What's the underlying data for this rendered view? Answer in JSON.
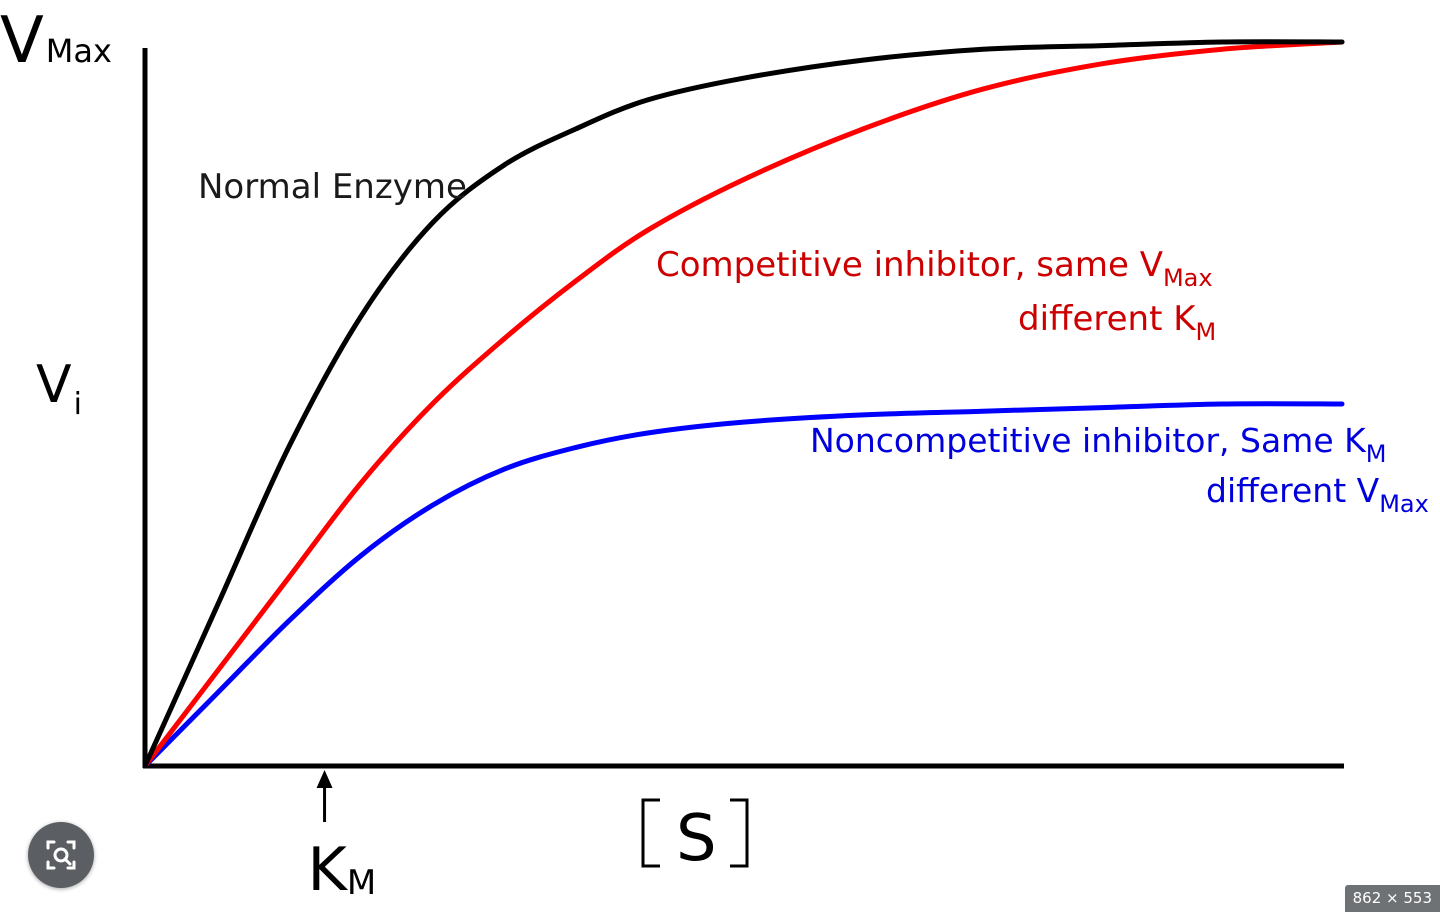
{
  "chart_data": {
    "type": "line",
    "x_label_main": "S",
    "y_top_label_main": "V",
    "y_top_label_sub": "Max",
    "y_mid_label_main": "V",
    "y_mid_label_sub": "i",
    "km_marker_main": "K",
    "km_marker_sub": "M",
    "km_marker_x": 0.15,
    "xlim": [
      0,
      1
    ],
    "ylim": [
      0,
      1
    ],
    "series": [
      {
        "key": "normal",
        "color": "#000000",
        "x": [
          0,
          0.06,
          0.12,
          0.18,
          0.24,
          0.3,
          0.36,
          0.42,
          0.5,
          0.6,
          0.7,
          0.8,
          0.9,
          1.0
        ],
        "y": [
          0,
          0.22,
          0.44,
          0.62,
          0.75,
          0.83,
          0.88,
          0.92,
          0.95,
          0.975,
          0.99,
          0.995,
          1.0,
          1.0
        ]
      },
      {
        "key": "competitive",
        "color": "#ff0000",
        "x": [
          0,
          0.06,
          0.12,
          0.18,
          0.24,
          0.3,
          0.36,
          0.42,
          0.5,
          0.6,
          0.7,
          0.8,
          0.9,
          1.0
        ],
        "y": [
          0,
          0.13,
          0.26,
          0.39,
          0.5,
          0.59,
          0.67,
          0.74,
          0.81,
          0.88,
          0.935,
          0.97,
          0.99,
          1.0
        ]
      },
      {
        "key": "noncompetitive",
        "color": "#0000ff",
        "x": [
          0,
          0.06,
          0.12,
          0.18,
          0.24,
          0.3,
          0.36,
          0.42,
          0.5,
          0.6,
          0.7,
          0.8,
          0.9,
          1.0
        ],
        "y": [
          0,
          0.1,
          0.2,
          0.29,
          0.36,
          0.41,
          0.44,
          0.46,
          0.475,
          0.485,
          0.49,
          0.495,
          0.5,
          0.5
        ]
      }
    ],
    "annotations": {
      "normal": {
        "text": "Normal Enzyme",
        "color": "#1a1a1a"
      },
      "competitive": {
        "line1": "Competitive inhibitor,  same V",
        "line1_sub": "Max",
        "line2": "different K",
        "line2_sub": "M",
        "color": "#cc0000"
      },
      "noncompetitive": {
        "line1": "Noncompetitive inhibitor,  Same K",
        "line1_sub": "M",
        "line2": "different V",
        "line2_sub": "Max",
        "color": "#0000dd"
      }
    }
  },
  "overlay": {
    "lens_icon": "image-search-icon",
    "dimensions_text": "862 × 553"
  }
}
